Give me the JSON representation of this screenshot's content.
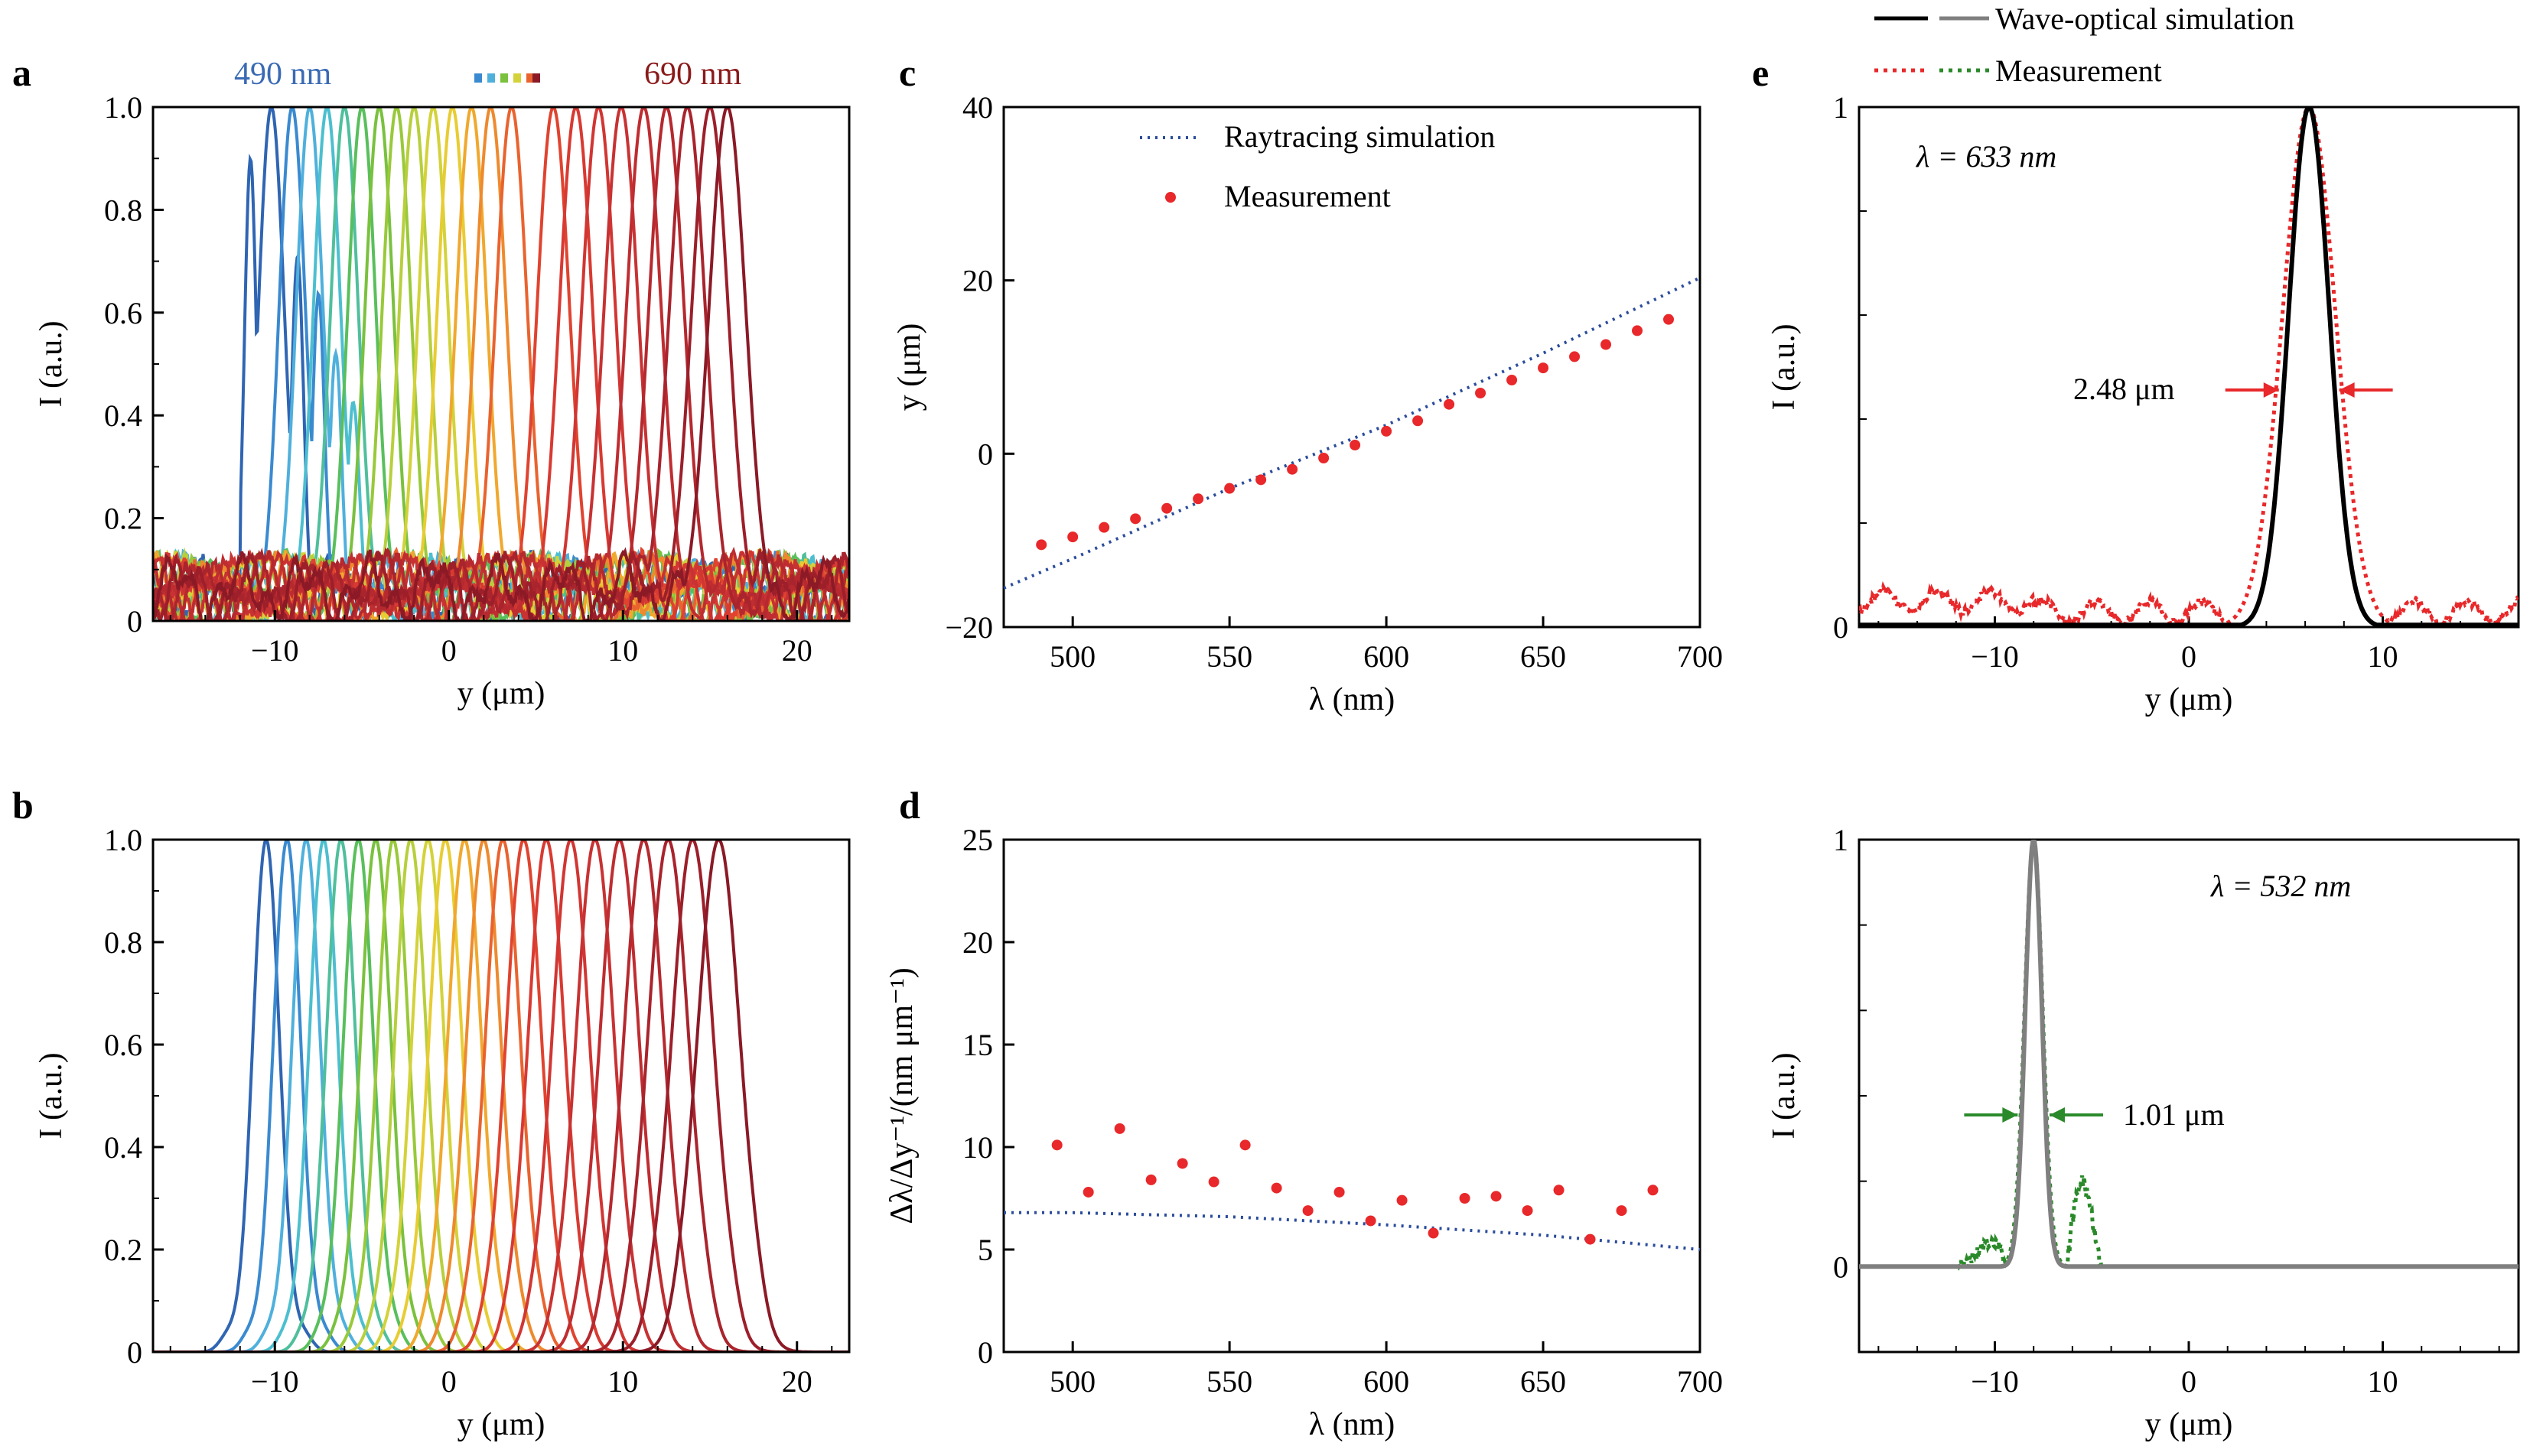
{
  "figure": {
    "panel_labels": [
      "a",
      "b",
      "c",
      "d",
      "e"
    ],
    "colors": {
      "axis": "#000000",
      "blue": "#3a6ab4",
      "dark_red": "#8b1a1a",
      "measure_red": "#e8282a",
      "sim_dotted": "#2b4c9c",
      "e_sim_633": "#000000",
      "e_meas_633": "#e8282a",
      "e_sim_532": "#7f7f7f",
      "e_meas_532": "#2a8a2a",
      "fwhm_red": "#e8282a",
      "fwhm_green": "#2a8a2a"
    },
    "spectrum": [
      "#2f65b3",
      "#3a8ad0",
      "#4fb0dc",
      "#4cbfcf",
      "#4fbf9c",
      "#59bf5c",
      "#7ac13e",
      "#99c93a",
      "#b8cf3d",
      "#d3d23a",
      "#e8cc33",
      "#f0a82e",
      "#ee8a2e",
      "#e9632f",
      "#e0432f",
      "#d83a32",
      "#d13633",
      "#c83233",
      "#bf2d31",
      "#b5292f",
      "#a9242d",
      "#9c1f2a",
      "#8b1a26"
    ]
  },
  "chart_data": [
    {
      "id": "a",
      "type": "line",
      "xlabel": "y (μm)",
      "ylabel": "I (a.u.)",
      "xlim": [
        -17,
        23
      ],
      "ylim": [
        0,
        1.0
      ],
      "xticks": [
        -10,
        0,
        10,
        20
      ],
      "yticks": [
        "0",
        "0.2",
        "0.4",
        "0.6",
        "0.8",
        "1.0"
      ],
      "legend_text": {
        "left": "490 nm",
        "right": "690 nm"
      },
      "series_description": "measured intensity profiles, 490–690 nm",
      "peak_centers": [
        -10.2,
        -9.0,
        -8.0,
        -7.0,
        -6.0,
        -5.0,
        -4.0,
        -3.0,
        -2.0,
        -0.9,
        0.2,
        1.3,
        2.4,
        3.6,
        6.0,
        7.3,
        8.6,
        9.9,
        11.2,
        12.5,
        13.7,
        15.0,
        16.0
      ]
    },
    {
      "id": "b",
      "type": "line",
      "xlabel": "y (μm)",
      "ylabel": "I (a.u.)",
      "xlim": [
        -17,
        23
      ],
      "ylim": [
        0,
        1.0
      ],
      "xticks": [
        -10,
        0,
        10,
        20
      ],
      "yticks": [
        "0",
        "0.2",
        "0.4",
        "0.6",
        "0.8",
        "1.0"
      ],
      "series_description": "simulated intensity profiles, 490–690 nm",
      "peak_centers": [
        -10.5,
        -9.3,
        -8.2,
        -7.2,
        -6.2,
        -5.2,
        -4.2,
        -3.2,
        -2.2,
        -1.2,
        -0.2,
        0.9,
        2.0,
        3.1,
        4.3,
        5.6,
        7.0,
        8.4,
        9.8,
        11.2,
        12.6,
        14.0,
        15.5
      ]
    },
    {
      "id": "c",
      "type": "scatter",
      "xlabel": "λ (nm)",
      "ylabel": "y (μm)",
      "xlim": [
        478,
        700
      ],
      "ylim": [
        -20,
        40
      ],
      "xticks": [
        500,
        550,
        600,
        650,
        700
      ],
      "yticks": [
        -20,
        0,
        20,
        40
      ],
      "series": [
        {
          "name": "Raytracing simulation",
          "style": "dotted-line",
          "x": [
            478,
            500,
            550,
            600,
            650,
            700
          ],
          "y": [
            -15.5,
            -12.1,
            -4.0,
            3.3,
            11.6,
            20.3
          ]
        },
        {
          "name": "Measurement",
          "style": "points",
          "x": [
            490,
            500,
            510,
            520,
            530,
            540,
            550,
            560,
            570,
            580,
            590,
            600,
            610,
            620,
            630,
            640,
            650,
            660,
            670,
            680,
            690
          ],
          "y": [
            -10.5,
            -9.6,
            -8.5,
            -7.5,
            -6.3,
            -5.2,
            -4.0,
            -3.0,
            -1.8,
            -0.5,
            1.0,
            2.6,
            3.8,
            5.7,
            7.0,
            8.5,
            9.9,
            11.2,
            12.6,
            14.2,
            15.5
          ]
        }
      ]
    },
    {
      "id": "d",
      "type": "scatter",
      "xlabel": "λ (nm)",
      "ylabel": "Δλ/Δy⁻¹/(nm μm⁻¹)",
      "xlim": [
        478,
        700
      ],
      "ylim": [
        0,
        25
      ],
      "xticks": [
        500,
        550,
        600,
        650,
        700
      ],
      "yticks": [
        0,
        5,
        10,
        15,
        20,
        25
      ],
      "series": [
        {
          "name": "Raytracing simulation",
          "style": "dotted-line",
          "x": [
            478,
            500,
            550,
            600,
            650,
            700
          ],
          "y": [
            6.8,
            6.8,
            6.6,
            6.2,
            5.7,
            5.0
          ]
        },
        {
          "name": "Measurement",
          "style": "points",
          "x": [
            495,
            505,
            515,
            525,
            535,
            545,
            555,
            565,
            575,
            585,
            595,
            605,
            615,
            625,
            635,
            645,
            655,
            665,
            675,
            685
          ],
          "y": [
            10.1,
            7.8,
            10.9,
            8.4,
            9.2,
            8.3,
            10.1,
            8.0,
            6.9,
            7.8,
            6.4,
            7.4,
            5.8,
            7.5,
            7.6,
            6.9,
            7.9,
            5.5,
            6.9,
            7.9
          ]
        }
      ]
    },
    {
      "id": "e-top",
      "type": "line",
      "xlabel": "y (μm)",
      "ylabel": "I (a.u.)",
      "xlim": [
        -17,
        17
      ],
      "ylim": [
        0,
        1.0
      ],
      "xticks": [
        -10,
        0,
        10
      ],
      "yticks": [
        "0",
        "1"
      ],
      "annotation_wavelength": "λ = 633 nm",
      "fwhm_label": "2.48 μm",
      "legend": [
        "Wave-optical simulation",
        "Measurement"
      ],
      "sim_peak": {
        "center": 6.2,
        "fwhm": 2.48
      },
      "meas_peak": {
        "center": 6.2,
        "fwhm": 3.2
      }
    },
    {
      "id": "e-bottom",
      "type": "line",
      "xlabel": "y (μm)",
      "ylabel": "I (a.u.)",
      "xlim": [
        -17,
        17
      ],
      "ylim": [
        -0.2,
        1.0
      ],
      "xticks": [
        -10,
        0,
        10
      ],
      "yticks": [
        "0",
        "1"
      ],
      "annotation_wavelength": "λ = 532 nm",
      "fwhm_label": "1.01 μm",
      "sim_peak": {
        "center": -8.0,
        "fwhm": 1.01
      },
      "meas_peak": {
        "center": -8.0,
        "fwhm": 1.1
      }
    }
  ]
}
